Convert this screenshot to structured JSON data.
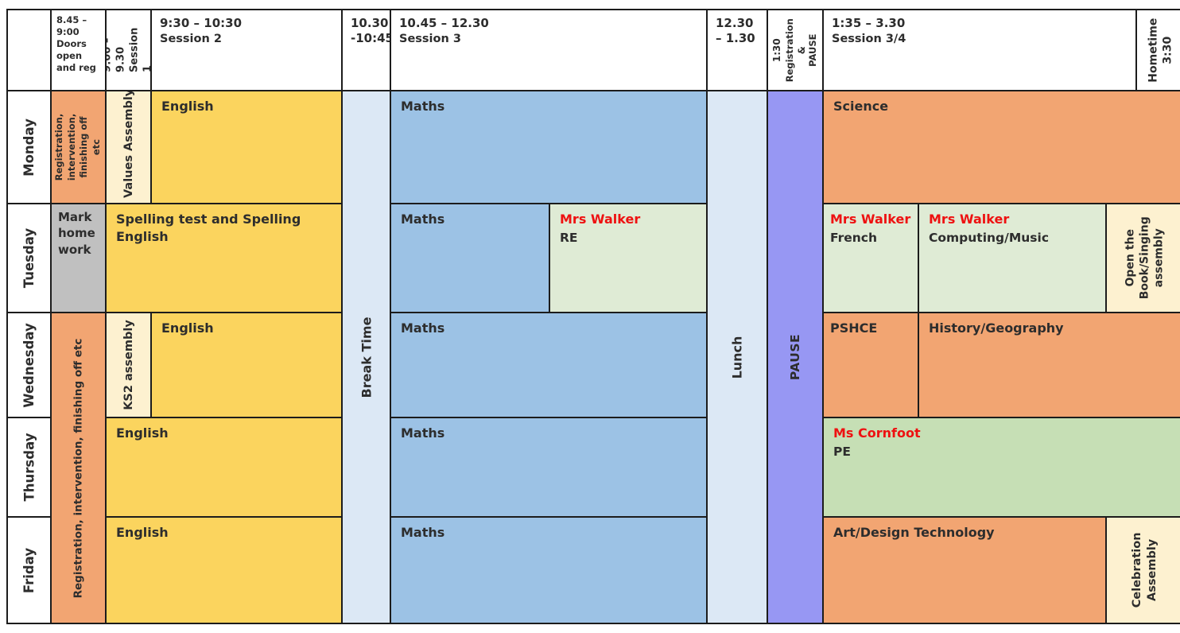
{
  "header": {
    "doors": {
      "time": "8.45 – 9:00",
      "label": "Doors open and reg"
    },
    "session1": {
      "time": "9:00 – 9.30",
      "label": "Session 1"
    },
    "session2": {
      "time": "9:30 – 10:30",
      "label": "Session 2"
    },
    "morning_break": {
      "time": "10.30 -10:45"
    },
    "session3": {
      "time": "10.45 – 12.30",
      "label": "Session 3"
    },
    "lunch": {
      "time": "12.30 – 1.30"
    },
    "pause": {
      "time": "1:30",
      "label_line1": "Registration &",
      "label_line2": "PAUSE"
    },
    "session34": {
      "time": "1:35 – 3.30",
      "label": "Session 3/4"
    },
    "hometime": {
      "label": "Hometime",
      "time": "3:30"
    }
  },
  "days": {
    "monday": "Monday",
    "tuesday": "Tuesday",
    "wednesday": "Wednesday",
    "thursday": "Thursday",
    "friday": "Friday"
  },
  "bands": {
    "break": "Break Time",
    "lunch": "Lunch",
    "pause": "PAUSE"
  },
  "monday": {
    "registration": "Registration, intervention, finishing off etc",
    "assembly": "Values Assembly",
    "english": "English",
    "maths": "Maths",
    "science": "Science"
  },
  "tuesday": {
    "homework": "Mark home work",
    "spelling_line1": "Spelling test and Spelling",
    "spelling_line2": "English",
    "maths": "Maths",
    "re": {
      "teacher": "Mrs Walker",
      "subject": "RE"
    },
    "french": {
      "teacher": "Mrs Walker",
      "subject": "French"
    },
    "computing": {
      "teacher": "Mrs Walker",
      "subject": "Computing/Music"
    },
    "assembly": "Open the Book/Singing assembly"
  },
  "wednesday": {
    "assembly": "KS2 assembly",
    "english": "English",
    "maths": "Maths",
    "pshce": "PSHCE",
    "history_geography": "History/Geography"
  },
  "wed_to_fri": {
    "registration": "Registration, intervention, finishing off etc"
  },
  "thursday": {
    "english": "English",
    "maths": "Maths",
    "pe": {
      "teacher": "Ms Cornfoot",
      "subject": "PE"
    }
  },
  "friday": {
    "english": "English",
    "maths": "Maths",
    "art_dt": "Art/Design Technology",
    "assembly": "Celebration Assembly"
  },
  "colors": {
    "orange": "#f2a572",
    "yellow": "#fbd45e",
    "cream": "#fdf1d0",
    "light_blue": "#dce8f5",
    "maths_blue": "#9cc2e5",
    "purple": "#9797f3",
    "light_green": "#dfebd5",
    "pe_green": "#c6dfb5",
    "grey": "#c0c0c0",
    "teacher_red": "#ee1111",
    "border_black": "#1c1c1c"
  }
}
